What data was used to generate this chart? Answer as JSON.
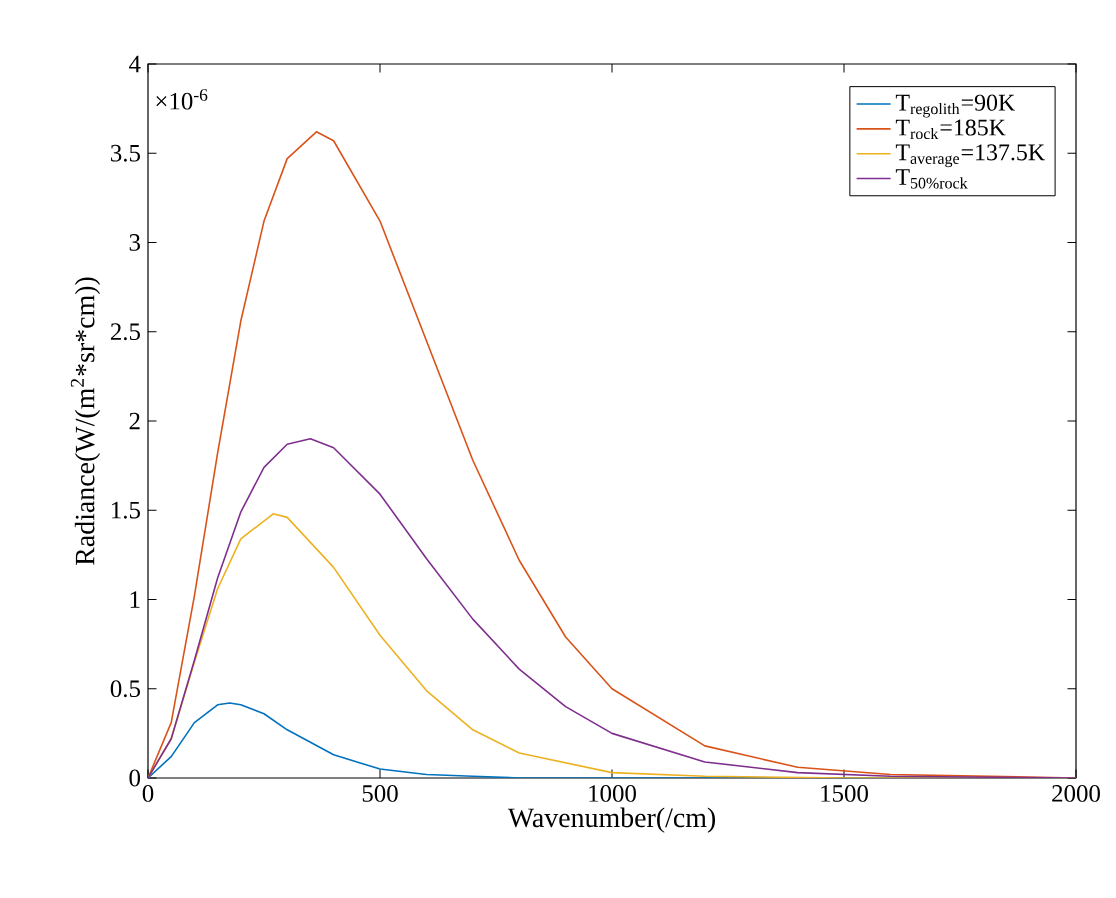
{
  "chart_data": {
    "type": "line",
    "xlabel": "Wavenumber(/cm)",
    "ylabel": "Radiance(W/(m$^{2}$*sr*cm))",
    "annotations": [
      "×10$^{-6}$"
    ],
    "xlim": [
      0,
      2000
    ],
    "ylim": [
      0,
      4
    ],
    "xticks": [
      0,
      500,
      1000,
      1500,
      2000
    ],
    "yticks": [
      0,
      0.5,
      1,
      1.5,
      2,
      2.5,
      3,
      3.5,
      4
    ],
    "grid": false,
    "legend": "top right",
    "marker": "none",
    "line_style": "solid",
    "series": [
      {
        "name": "T$_{regolith}$=90K",
        "color": "#0072bd",
        "x": [
          0,
          50,
          100,
          150,
          176,
          200,
          250,
          300,
          400,
          500,
          600,
          700,
          800,
          1000,
          1500,
          2000
        ],
        "values": [
          0,
          0.12,
          0.31,
          0.41,
          0.42,
          0.41,
          0.36,
          0.27,
          0.13,
          0.05,
          0.02,
          0.01,
          0,
          0,
          0,
          0
        ]
      },
      {
        "name": "T$_{rock}$=185K",
        "color": "#d95319",
        "x": [
          0,
          50,
          100,
          150,
          200,
          250,
          300,
          363,
          400,
          500,
          600,
          700,
          800,
          900,
          1000,
          1200,
          1400,
          1600,
          2000
        ],
        "values": [
          0,
          0.31,
          1.02,
          1.82,
          2.56,
          3.12,
          3.47,
          3.62,
          3.57,
          3.12,
          2.45,
          1.78,
          1.22,
          0.79,
          0.5,
          0.18,
          0.06,
          0.02,
          0
        ]
      },
      {
        "name": "T$_{average}$=137.5K",
        "color": "#edb120",
        "x": [
          0,
          50,
          100,
          150,
          200,
          270,
          300,
          400,
          500,
          600,
          700,
          800,
          1000,
          1200,
          1500,
          2000
        ],
        "values": [
          0,
          0.22,
          0.65,
          1.06,
          1.34,
          1.48,
          1.46,
          1.18,
          0.8,
          0.49,
          0.27,
          0.14,
          0.03,
          0.01,
          0,
          0
        ]
      },
      {
        "name": "T$_{50%rock}$",
        "color": "#7e2f8e",
        "x": [
          0,
          50,
          100,
          150,
          200,
          250,
          300,
          350,
          400,
          500,
          600,
          700,
          800,
          900,
          1000,
          1200,
          1400,
          1600,
          2000
        ],
        "values": [
          0,
          0.22,
          0.66,
          1.12,
          1.49,
          1.74,
          1.87,
          1.9,
          1.85,
          1.59,
          1.23,
          0.89,
          0.61,
          0.4,
          0.25,
          0.09,
          0.03,
          0.01,
          0
        ]
      }
    ]
  }
}
